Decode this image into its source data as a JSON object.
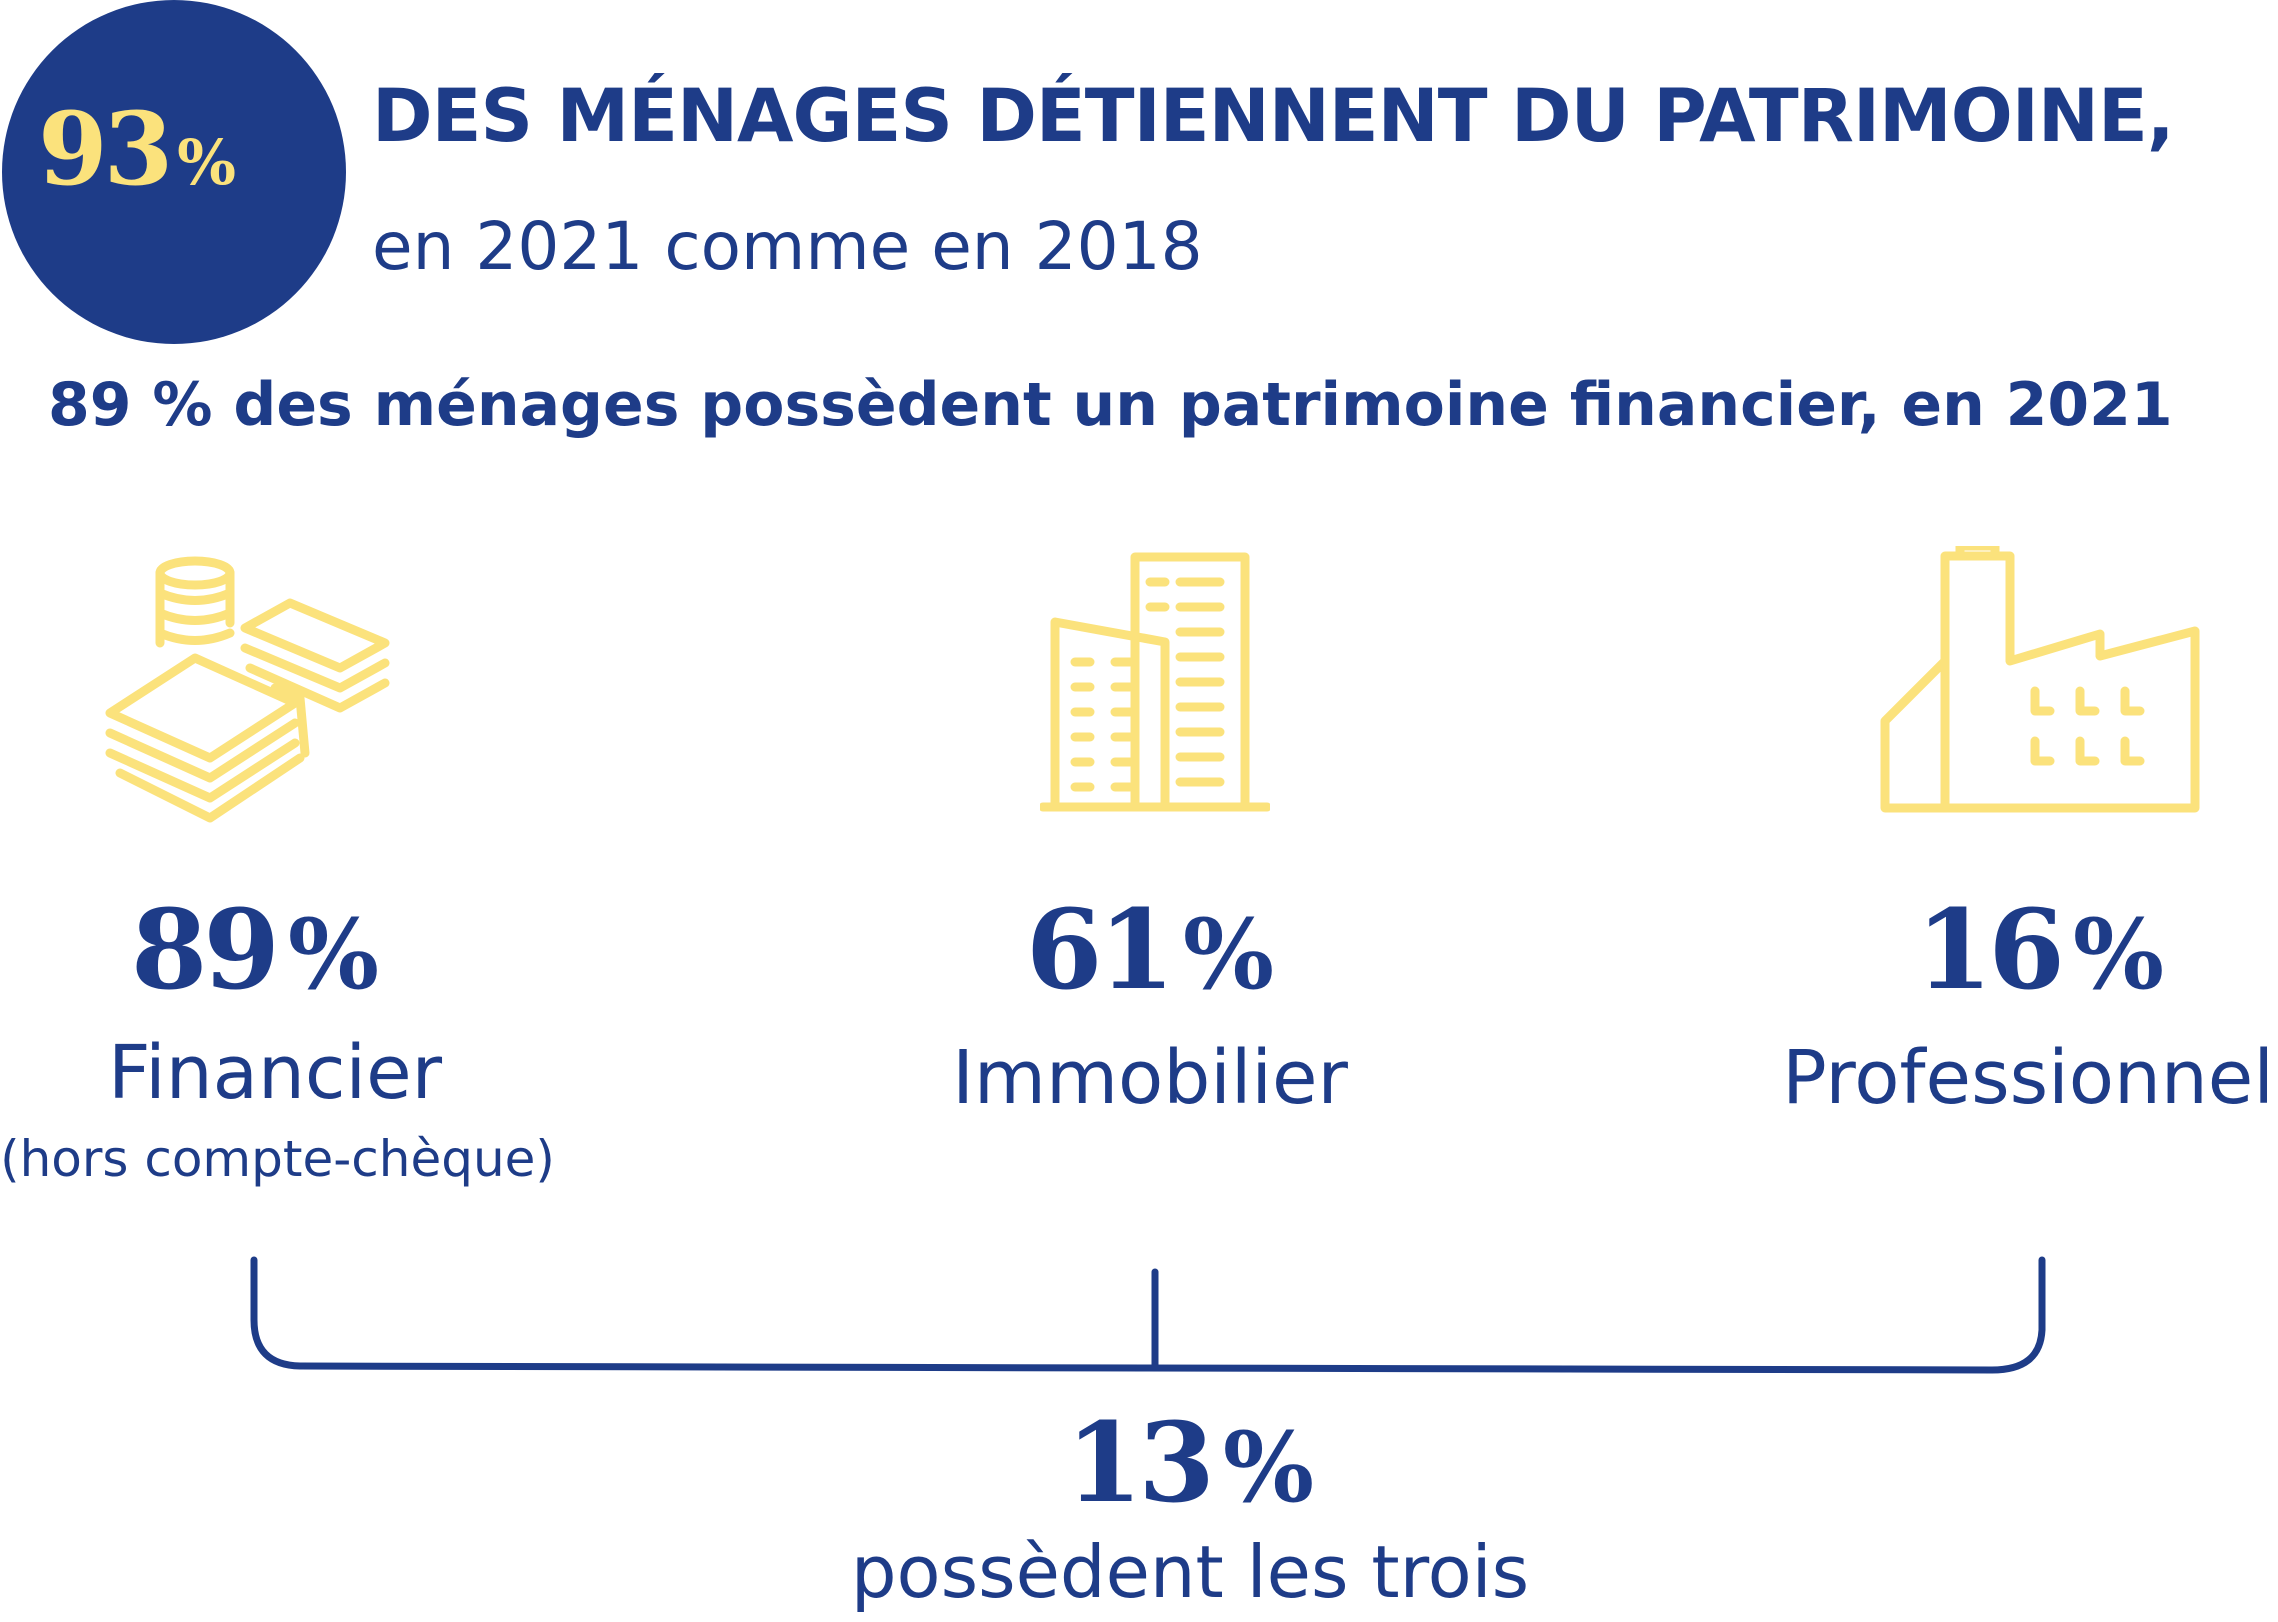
{
  "header": {
    "circle_value": "93",
    "circle_unit": "%",
    "title": "DES MÉNAGES DÉTIENNENT DU PATRIMOINE,",
    "subtitle": "en 2021 comme en 2018"
  },
  "summary": "89 % des ménages possèdent un patrimoine financier, en 2021",
  "categories": [
    {
      "icon": "money-stack-icon",
      "value": "89",
      "unit": "%",
      "label": "Financier",
      "note": "(hors compte-chèque)"
    },
    {
      "icon": "buildings-icon",
      "value": "61",
      "unit": "%",
      "label": "Immobilier"
    },
    {
      "icon": "factory-icon",
      "value": "16",
      "unit": "%",
      "label": "Professionnel"
    }
  ],
  "total": {
    "value": "13",
    "unit": "%",
    "label": "possèdent les trois"
  },
  "colors": {
    "navy": "#1e3c88",
    "yellow": "#fbe27c",
    "white": "#ffffff"
  }
}
